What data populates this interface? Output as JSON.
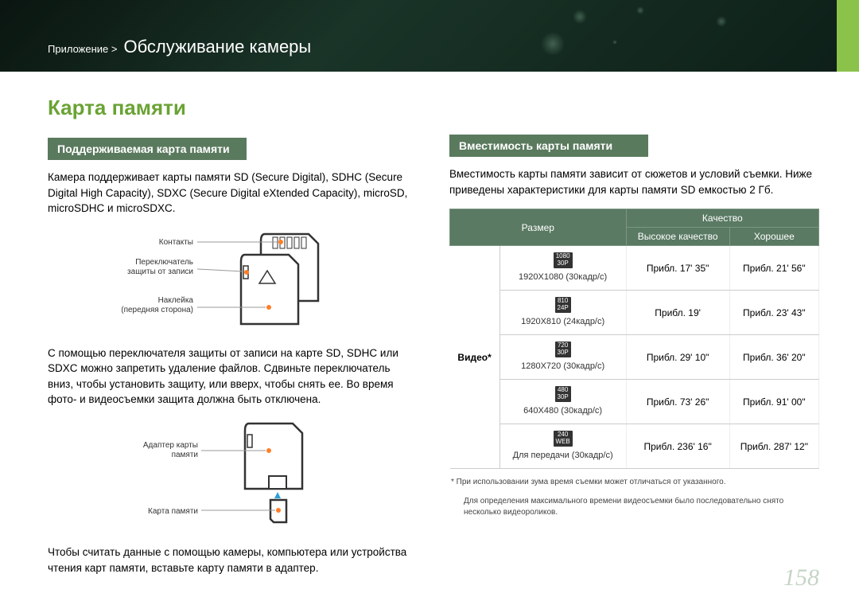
{
  "header": {
    "breadcrumb_prefix": "Приложение  >",
    "breadcrumb_title": "Обслуживание камеры",
    "accent_color": "#8bc34a"
  },
  "left": {
    "main_title": "Карта памяти",
    "section1_header": "Поддерживаемая карта памяти",
    "section1_body": "Камера поддерживает карты памяти SD (Secure Digital), SDHC (Secure Digital High Capacity), SDXC (Secure Digital eXtended Capacity), microSD, microSDHC и microSDXC.",
    "diagram1_labels": {
      "contacts": "Контакты",
      "lock": "Переключатель защиты от записи",
      "label": "Наклейка (передняя сторона)"
    },
    "section1_body2": "С помощью переключателя защиты от записи на карте SD, SDHC или SDXC можно запретить удаление файлов. Сдвиньте переключатель вниз, чтобы установить защиту, или вверх, чтобы снять ее. Во время фото- и видеосъемки защита должна быть отключена.",
    "diagram2_labels": {
      "adapter": "Адаптер карты памяти",
      "card": "Карта памяти"
    },
    "section1_body3": "Чтобы считать данные с помощью камеры, компьютера или устройства чтения карт памяти, вставьте карту памяти в адаптер."
  },
  "right": {
    "section2_header": "Вместимость карты памяти",
    "section2_body": "Вместимость карты памяти зависит от сюжетов и условий съемки. Ниже приведены характеристики для карты памяти SD емкостью 2 Гб.",
    "table": {
      "col_size": "Размер",
      "col_quality": "Качество",
      "col_hq": "Высокое качество",
      "col_good": "Хорошее",
      "rowspan_label": "Видео*",
      "rows": [
        {
          "badge_top": "1080",
          "badge_bot": "30P",
          "desc": "1920X1080 (30кадр/с)",
          "hq": "Прибл. 17' 35\"",
          "good": "Прибл. 21' 56\""
        },
        {
          "badge_top": "810",
          "badge_bot": "24P",
          "desc": "1920X810 (24кадр/с)",
          "hq": "Прибл. 19'",
          "good": "Прибл. 23' 43\""
        },
        {
          "badge_top": "720",
          "badge_bot": "30P",
          "desc": "1280X720 (30кадр/с)",
          "hq": "Прибл. 29' 10\"",
          "good": "Прибл. 36' 20\""
        },
        {
          "badge_top": "480",
          "badge_bot": "30P",
          "desc": "640X480 (30кадр/с)",
          "hq": "Прибл. 73' 26\"",
          "good": "Прибл. 91' 00\""
        },
        {
          "badge_top": "240",
          "badge_bot": "WEB",
          "desc": "Для передачи (30кадр/с)",
          "hq": "Прибл. 236' 16\"",
          "good": "Прибл. 287' 12\""
        }
      ]
    },
    "footnote1": "* При использовании зума время съемки может отличаться от указанного.",
    "footnote2": "Для определения максимального времени видеосъемки было последовательно снято несколько видеороликов."
  },
  "page_number": "158"
}
